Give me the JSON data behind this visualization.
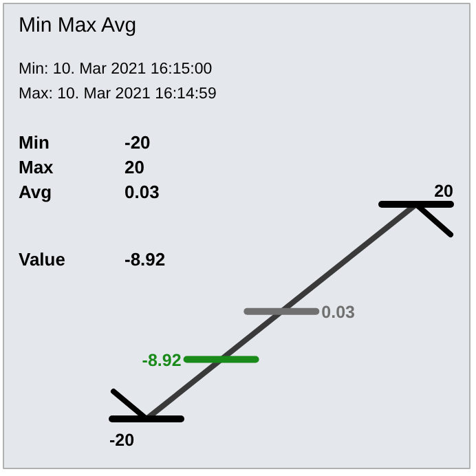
{
  "chart_data": {
    "type": "other",
    "title": "Min Max Avg",
    "annotations": [
      "Min:  10. Mar 2021 16:15:00",
      "Max: 10. Mar 2021 16:14:59"
    ],
    "categories": [
      "Min",
      "Max",
      "Avg",
      "Value"
    ],
    "values": [
      -20,
      20,
      0.03,
      -8.92
    ],
    "value_labels": [
      "-20",
      "20",
      "0.03",
      "-8.92"
    ],
    "colors": [
      "#000000",
      "#000000",
      "#707070",
      "#1a8a1a"
    ],
    "data_labels": true
  }
}
